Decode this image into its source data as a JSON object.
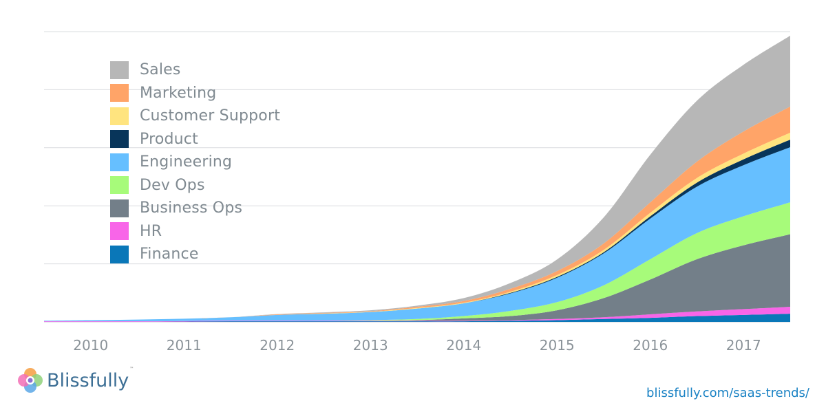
{
  "chart_data": {
    "type": "area",
    "stacked": true,
    "title": "",
    "xlabel": "",
    "ylabel": "",
    "x_ticks": [
      "2010",
      "2011",
      "2012",
      "2013",
      "2014",
      "2015",
      "2016",
      "2017"
    ],
    "x": [
      2009.5,
      2010.0,
      2010.5,
      2011.0,
      2011.5,
      2012.0,
      2012.5,
      2013.0,
      2013.5,
      2014.0,
      2014.5,
      2015.0,
      2015.5,
      2016.0,
      2016.5,
      2017.0,
      2017.5
    ],
    "xlim": [
      2009.5,
      2017.5
    ],
    "ylim": [
      0,
      5
    ],
    "y_gridlines": [
      0,
      1,
      2,
      3,
      4,
      5
    ],
    "grid": true,
    "legend_position": "top-left",
    "series": [
      {
        "name": "Finance",
        "color": "#0a77b8",
        "values": [
          0,
          0,
          0,
          0.005,
          0.01,
          0.01,
          0.01,
          0.01,
          0.01,
          0.01,
          0.02,
          0.03,
          0.05,
          0.07,
          0.1,
          0.12,
          0.14
        ]
      },
      {
        "name": "HR",
        "color": "#f865e8",
        "values": [
          0.01,
          0.01,
          0.01,
          0.01,
          0.01,
          0.01,
          0.01,
          0.01,
          0.01,
          0.01,
          0.01,
          0.02,
          0.03,
          0.06,
          0.08,
          0.1,
          0.12
        ]
      },
      {
        "name": "Business Ops",
        "color": "#737f89",
        "values": [
          0,
          0,
          0,
          0,
          0,
          0,
          0,
          0,
          0.01,
          0.04,
          0.07,
          0.15,
          0.33,
          0.6,
          0.9,
          1.1,
          1.25
        ]
      },
      {
        "name": "Dev Ops",
        "color": "#a7fb7a",
        "values": [
          0,
          0,
          0,
          0,
          0,
          0,
          0,
          0.01,
          0.02,
          0.04,
          0.09,
          0.14,
          0.22,
          0.35,
          0.45,
          0.5,
          0.55
        ]
      },
      {
        "name": "Engineering",
        "color": "#66bfff",
        "values": [
          0.01,
          0.02,
          0.03,
          0.04,
          0.06,
          0.1,
          0.12,
          0.14,
          0.18,
          0.22,
          0.3,
          0.42,
          0.55,
          0.7,
          0.8,
          0.88,
          0.95
        ]
      },
      {
        "name": "Product",
        "color": "#08355a",
        "values": [
          0,
          0,
          0,
          0,
          0,
          0,
          0,
          0,
          0,
          0,
          0.01,
          0.015,
          0.02,
          0.04,
          0.07,
          0.1,
          0.13
        ]
      },
      {
        "name": "Customer Support",
        "color": "#ffe47f",
        "values": [
          0,
          0,
          0,
          0,
          0,
          0,
          0.005,
          0.005,
          0.01,
          0.01,
          0.02,
          0.03,
          0.04,
          0.06,
          0.08,
          0.1,
          0.12
        ]
      },
      {
        "name": "Marketing",
        "color": "#ffa468",
        "values": [
          0,
          0,
          0,
          0,
          0,
          0.01,
          0.01,
          0.01,
          0.02,
          0.03,
          0.05,
          0.07,
          0.11,
          0.18,
          0.28,
          0.38,
          0.45
        ]
      },
      {
        "name": "Sales",
        "color": "#b7b7b7",
        "values": [
          0,
          0,
          0,
          0,
          0,
          0.005,
          0.01,
          0.015,
          0.02,
          0.05,
          0.1,
          0.2,
          0.45,
          0.82,
          1.05,
          1.15,
          1.22
        ]
      }
    ]
  },
  "brand": {
    "name": "Blissfully",
    "trademark": "™",
    "logo_icon": "blissfully-flower-logo",
    "url": "blissfully.com/saas-trends/"
  }
}
